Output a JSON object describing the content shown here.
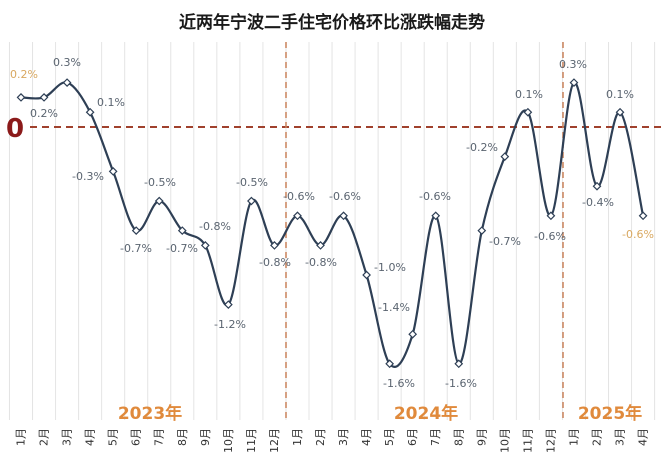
{
  "chart_data": {
    "type": "line",
    "title": "近两年宁波二手住宅价格环比涨跌幅走势",
    "xlabel": "",
    "ylabel": "",
    "years": [
      "2023年",
      "2024年",
      "2025年"
    ],
    "zero_label": "0",
    "categories": [
      "1月",
      "2月",
      "3月",
      "4月",
      "5月",
      "6月",
      "7月",
      "8月",
      "9月",
      "10月",
      "11月",
      "12月",
      "1月",
      "2月",
      "3月",
      "4月",
      "5月",
      "6月",
      "7月",
      "8月",
      "9月",
      "10月",
      "11月",
      "12月",
      "1月",
      "2月",
      "3月",
      "4月"
    ],
    "values": [
      0.2,
      0.2,
      0.3,
      0.1,
      -0.3,
      -0.7,
      -0.5,
      -0.7,
      -0.8,
      -1.2,
      -0.5,
      -0.8,
      -0.6,
      -0.8,
      -0.6,
      -1.0,
      -1.6,
      -1.4,
      -0.6,
      -1.6,
      -0.7,
      -0.2,
      0.1,
      -0.6,
      0.3,
      -0.4,
      0.1,
      -0.6
    ],
    "labels": [
      "0.2%",
      "0.2%",
      "0.3%",
      "0.1%",
      "-0.3%",
      "-0.7%",
      "-0.5%",
      "-0.7%",
      "-0.8%",
      "-1.2%",
      "-0.5%",
      "-0.8%",
      "-0.6%",
      "-0.8%",
      "-0.6%",
      "-1.0%",
      "-1.6%",
      "-1.4%",
      "-0.6%",
      "-1.6%",
      "-0.7%",
      "-0.2%",
      "0.1%",
      "-0.6%",
      "0.3%",
      "-0.4%",
      "0.1%",
      "-0.6%"
    ],
    "unit": "%",
    "grid": "vertical",
    "smooth": true,
    "colors": {
      "line": "#2e3f55",
      "zero_line": "#a0412d",
      "year_divider": "#c9825a",
      "year_text": "#e08a3c",
      "highlight_label": "#d9a860"
    }
  }
}
